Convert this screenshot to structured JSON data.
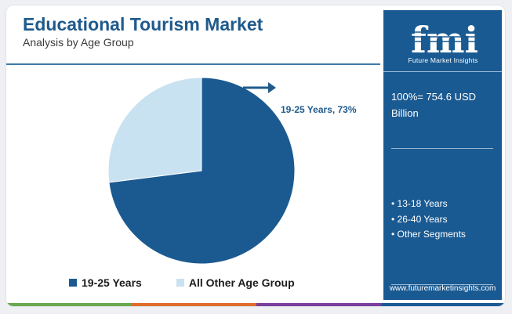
{
  "header": {
    "title": "Educational Tourism Market",
    "subtitle": "Analysis by Age Group"
  },
  "chart_data": {
    "type": "pie",
    "slices": [
      {
        "label": "19-25 Years",
        "value": 73,
        "color": "#1b5a91"
      },
      {
        "label": "All Other Age Group",
        "value": 27,
        "color": "#c9e2f1"
      }
    ],
    "annotation": "19-25 Years, 73%",
    "legend": [
      "19-25 Years",
      "All Other Age Group"
    ],
    "legend_position": "bottom"
  },
  "sidebar": {
    "logo_text": "fmi",
    "logo_subtitle": "Future Market Insights",
    "total": "100%= 754.6 USD Billion",
    "segments": [
      "13-18 Years",
      "26-40 Years",
      "Other Segments"
    ],
    "website": "www.futuremarketinsights.com"
  },
  "colors": {
    "brand": "#1a5a92",
    "accent_light": "#c9e2f1",
    "footer": [
      "#6aa84f",
      "#e06c2b",
      "#7a3e9d",
      "#1a5a92"
    ]
  }
}
